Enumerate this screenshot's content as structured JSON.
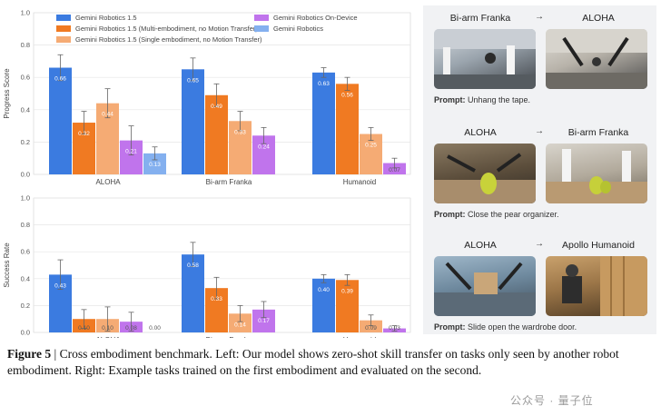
{
  "chart_data": [
    {
      "type": "bar",
      "ylabel": "Progress Score",
      "ylim": [
        0,
        1.0
      ],
      "yticks": [
        "0.0",
        "0.2",
        "0.4",
        "0.6",
        "0.8",
        "1.0"
      ],
      "categories": [
        "ALOHA",
        "Bi-arm Franka",
        "Humanoid"
      ],
      "series": [
        {
          "name": "Gemini Robotics 1.5",
          "color": "#3b7be0",
          "values": [
            0.66,
            0.65,
            0.63
          ],
          "errors": [
            0.08,
            0.07,
            0.03
          ],
          "labels": [
            "0.66",
            "0.65",
            "0.63"
          ]
        },
        {
          "name": "Gemini Robotics 1.5 (Multi-embodiment, no Motion Transfer)",
          "color": "#f07a22",
          "values": [
            0.32,
            0.49,
            0.56
          ],
          "errors": [
            0.07,
            0.07,
            0.04
          ],
          "labels": [
            "0.32",
            "0.49",
            "0.56"
          ]
        },
        {
          "name": "Gemini Robotics 1.5 (Single embodiment, no Motion Transfer)",
          "color": "#f5ab74",
          "values": [
            0.44,
            0.33,
            0.25
          ],
          "errors": [
            0.09,
            0.06,
            0.04
          ],
          "labels": [
            "0.44",
            "0.33",
            "0.25"
          ]
        },
        {
          "name": "Gemini Robotics On-Device",
          "color": "#c074ec",
          "values": [
            0.21,
            0.24,
            0.07
          ],
          "errors": [
            0.09,
            0.05,
            0.03
          ],
          "labels": [
            "0.21",
            "0.24",
            "0.07"
          ]
        },
        {
          "name": "Gemini Robotics",
          "color": "#84b0ef",
          "values": [
            0.13,
            null,
            null
          ],
          "errors": [
            0.04,
            null,
            null
          ],
          "labels": [
            "0.13",
            "",
            ""
          ]
        }
      ],
      "legend": "top"
    },
    {
      "type": "bar",
      "ylabel": "Success Rate",
      "ylim": [
        0,
        1.0
      ],
      "yticks": [
        "0.0",
        "0.2",
        "0.4",
        "0.6",
        "0.8",
        "1.0"
      ],
      "categories": [
        "ALOHA",
        "Bi-arm Franka",
        "Humanoid"
      ],
      "series": [
        {
          "name": "Gemini Robotics 1.5",
          "color": "#3b7be0",
          "values": [
            0.43,
            0.58,
            0.4
          ],
          "errors": [
            0.11,
            0.09,
            0.03
          ],
          "labels": [
            "0.43",
            "0.58",
            "0.40"
          ]
        },
        {
          "name": "Gemini Robotics 1.5 (Multi-embodiment, no Motion Transfer)",
          "color": "#f07a22",
          "values": [
            0.1,
            0.33,
            0.39
          ],
          "errors": [
            0.07,
            0.08,
            0.04
          ],
          "labels": [
            "0.10",
            "0.33",
            "0.39"
          ]
        },
        {
          "name": "Gemini Robotics 1.5 (Single embodiment, no Motion Transfer)",
          "color": "#f5ab74",
          "values": [
            0.1,
            0.14,
            0.09
          ],
          "errors": [
            0.09,
            0.06,
            0.04
          ],
          "labels": [
            "0.10",
            "0.14",
            "0.09"
          ]
        },
        {
          "name": "Gemini Robotics On-Device",
          "color": "#c074ec",
          "values": [
            0.08,
            0.17,
            0.03
          ],
          "errors": [
            0.07,
            0.06,
            0.02
          ],
          "labels": [
            "0.08",
            "0.17",
            "0.03"
          ]
        },
        {
          "name": "Gemini Robotics",
          "color": "#84b0ef",
          "values": [
            0.0,
            null,
            null
          ],
          "errors": [
            0,
            null,
            null
          ],
          "labels": [
            "0.00",
            "",
            ""
          ]
        }
      ]
    }
  ],
  "panels": [
    {
      "from": "Bi-arm Franka",
      "arrow": "→",
      "to": "ALOHA",
      "prompt_label": "Prompt:",
      "prompt_text": " Unhang the tape."
    },
    {
      "from": "ALOHA",
      "arrow": "→",
      "to": "Bi-arm Franka",
      "prompt_label": "Prompt:",
      "prompt_text": " Close the pear organizer."
    },
    {
      "from": "ALOHA",
      "arrow": "→",
      "to": "Apollo Humanoid",
      "prompt_label": "Prompt:",
      "prompt_text": " Slide open the wardrobe door."
    }
  ],
  "caption": {
    "label": "Figure 5",
    "text": " | Cross embodiment benchmark. Left: Our model shows zero-shot skill transfer on tasks only seen by another robot embodiment. Right: Example tasks trained on the first embodiment and evaluated on the second."
  },
  "watermark": "公众号 · 量子位"
}
